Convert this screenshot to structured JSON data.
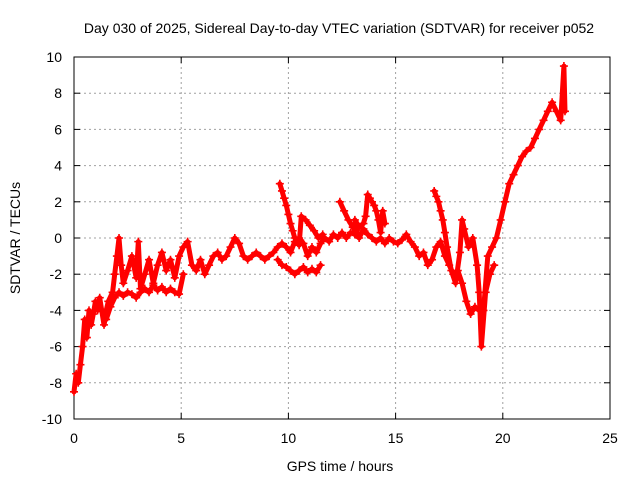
{
  "chart_data": {
    "type": "scatter",
    "title": "Day 030 of 2025, Sidereal Day-to-day VTEC variation (SDTVAR) for receiver p052",
    "xlabel": "GPS time / hours",
    "ylabel": "SDTVAR / TECUs",
    "xlim": [
      0,
      25
    ],
    "ylim": [
      -10,
      10
    ],
    "xticks": [
      0,
      5,
      10,
      15,
      20,
      25
    ],
    "yticks": [
      -10,
      -8,
      -6,
      -4,
      -2,
      0,
      2,
      4,
      6,
      8,
      10
    ],
    "grid": true,
    "legend": "none",
    "marker": "+",
    "series": [
      {
        "name": "main",
        "color": "#ff0000",
        "points": [
          [
            0.0,
            -8.5
          ],
          [
            0.1,
            -7.5
          ],
          [
            0.2,
            -8.0
          ],
          [
            0.3,
            -7.0
          ],
          [
            0.4,
            -6.0
          ],
          [
            0.5,
            -4.5
          ],
          [
            0.6,
            -5.5
          ],
          [
            0.7,
            -4.0
          ],
          [
            0.8,
            -4.8
          ],
          [
            0.9,
            -4.2
          ],
          [
            1.0,
            -3.5
          ],
          [
            1.1,
            -4.0
          ],
          [
            1.2,
            -3.3
          ],
          [
            1.4,
            -4.8
          ],
          [
            1.5,
            -4.0
          ],
          [
            1.6,
            -3.5
          ],
          [
            1.8,
            -3.0
          ],
          [
            1.9,
            -2.0
          ],
          [
            2.0,
            -1.0
          ],
          [
            2.1,
            0.0
          ],
          [
            2.2,
            -1.5
          ],
          [
            2.3,
            -2.5
          ],
          [
            2.5,
            -1.8
          ],
          [
            2.7,
            -1.0
          ],
          [
            2.9,
            -2.2
          ],
          [
            3.0,
            -0.2
          ],
          [
            3.1,
            -2.8
          ],
          [
            3.3,
            -2.0
          ],
          [
            3.5,
            -1.2
          ],
          [
            3.7,
            -2.5
          ],
          [
            3.9,
            -1.5
          ],
          [
            4.1,
            -0.8
          ],
          [
            4.3,
            -1.8
          ],
          [
            4.5,
            -1.2
          ],
          [
            4.7,
            -2.2
          ],
          [
            4.9,
            -1.0
          ],
          [
            5.1,
            -0.5
          ],
          [
            5.3,
            -0.2
          ],
          [
            5.5,
            -1.5
          ],
          [
            5.7,
            -1.8
          ],
          [
            5.9,
            -1.2
          ],
          [
            6.1,
            -2.0
          ],
          [
            6.3,
            -1.5
          ],
          [
            6.5,
            -1.0
          ],
          [
            6.7,
            -0.8
          ],
          [
            6.9,
            -1.2
          ],
          [
            7.1,
            -1.0
          ],
          [
            7.3,
            -0.5
          ],
          [
            7.5,
            0.0
          ],
          [
            7.7,
            -0.3
          ],
          [
            7.9,
            -1.0
          ],
          [
            8.1,
            -1.2
          ],
          [
            8.3,
            -1.0
          ],
          [
            8.5,
            -0.8
          ],
          [
            8.7,
            -1.0
          ],
          [
            8.9,
            -1.2
          ],
          [
            9.1,
            -1.0
          ],
          [
            9.3,
            -0.8
          ],
          [
            9.5,
            -0.5
          ],
          [
            9.7,
            -0.3
          ],
          [
            9.9,
            -0.5
          ],
          [
            10.1,
            -0.8
          ],
          [
            10.3,
            -0.2
          ],
          [
            10.5,
            0.0
          ],
          [
            10.7,
            -0.3
          ],
          [
            10.9,
            -1.0
          ],
          [
            11.1,
            -0.5
          ],
          [
            11.3,
            -0.8
          ],
          [
            11.5,
            -0.3
          ],
          [
            11.7,
            0.0
          ],
          [
            11.9,
            -0.2
          ],
          [
            12.1,
            0.2
          ],
          [
            12.3,
            0.0
          ],
          [
            12.5,
            0.3
          ],
          [
            12.7,
            0.0
          ],
          [
            12.9,
            0.3
          ],
          [
            13.1,
            0.2
          ],
          [
            13.3,
            0.0
          ],
          [
            13.5,
            0.5
          ],
          [
            13.7,
            0.2
          ],
          [
            13.9,
            0.0
          ],
          [
            14.1,
            -0.2
          ],
          [
            14.3,
            0.0
          ],
          [
            14.5,
            -0.3
          ],
          [
            14.7,
            0.0
          ],
          [
            14.9,
            -0.2
          ],
          [
            15.1,
            -0.3
          ],
          [
            15.3,
            -0.1
          ],
          [
            15.5,
            0.2
          ],
          [
            15.7,
            -0.2
          ],
          [
            15.9,
            -0.5
          ],
          [
            16.1,
            -1.0
          ],
          [
            16.3,
            -0.8
          ],
          [
            16.5,
            -1.5
          ],
          [
            16.7,
            -1.2
          ],
          [
            16.9,
            -0.5
          ],
          [
            17.1,
            -0.2
          ],
          [
            17.3,
            -1.0
          ],
          [
            17.5,
            -1.5
          ],
          [
            17.7,
            -2.0
          ],
          [
            17.9,
            -1.8
          ],
          [
            18.1,
            -2.5
          ],
          [
            18.3,
            -3.5
          ],
          [
            18.5,
            -4.2
          ],
          [
            18.7,
            -3.8
          ],
          [
            18.9,
            -4.0
          ],
          [
            19.1,
            -4.0
          ],
          [
            19.3,
            -1.0
          ],
          [
            19.5,
            -0.5
          ],
          [
            19.7,
            0.0
          ],
          [
            19.9,
            1.0
          ],
          [
            20.1,
            2.0
          ],
          [
            20.3,
            3.0
          ],
          [
            20.5,
            3.5
          ],
          [
            20.7,
            4.0
          ],
          [
            20.9,
            4.5
          ],
          [
            21.1,
            4.8
          ],
          [
            21.3,
            5.0
          ],
          [
            21.5,
            5.5
          ],
          [
            21.7,
            6.0
          ],
          [
            21.9,
            6.5
          ],
          [
            22.1,
            7.0
          ],
          [
            22.3,
            7.5
          ],
          [
            22.5,
            7.0
          ],
          [
            22.7,
            6.5
          ],
          [
            22.85,
            9.5
          ],
          [
            22.9,
            7.0
          ]
        ]
      },
      {
        "name": "early-low-band",
        "color": "#ff0000",
        "points": [
          [
            1.5,
            -4.5
          ],
          [
            1.7,
            -3.8
          ],
          [
            1.9,
            -3.3
          ],
          [
            2.1,
            -3.0
          ],
          [
            2.3,
            -3.2
          ],
          [
            2.5,
            -3.0
          ],
          [
            2.7,
            -3.1
          ],
          [
            2.9,
            -3.3
          ],
          [
            3.1,
            -3.0
          ],
          [
            3.3,
            -2.8
          ],
          [
            3.5,
            -3.0
          ],
          [
            3.7,
            -2.6
          ],
          [
            3.9,
            -2.9
          ],
          [
            4.1,
            -2.7
          ],
          [
            4.3,
            -3.0
          ],
          [
            4.5,
            -2.8
          ],
          [
            4.7,
            -3.0
          ],
          [
            4.9,
            -3.1
          ],
          [
            5.1,
            -2.0
          ]
        ]
      },
      {
        "name": "mid-low-band",
        "color": "#ff0000",
        "points": [
          [
            9.5,
            -1.2
          ],
          [
            9.7,
            -1.5
          ],
          [
            9.9,
            -1.6
          ],
          [
            10.1,
            -1.8
          ],
          [
            10.3,
            -2.0
          ],
          [
            10.5,
            -1.8
          ],
          [
            10.7,
            -1.6
          ],
          [
            10.9,
            -1.9
          ],
          [
            11.1,
            -1.7
          ],
          [
            11.3,
            -1.9
          ],
          [
            11.5,
            -1.5
          ]
        ]
      },
      {
        "name": "mid-upper-strand",
        "color": "#ff0000",
        "points": [
          [
            9.6,
            3.0
          ],
          [
            9.7,
            2.6
          ],
          [
            9.8,
            2.2
          ],
          [
            9.9,
            1.8
          ],
          [
            10.0,
            1.3
          ],
          [
            10.1,
            0.8
          ],
          [
            10.2,
            0.4
          ],
          [
            10.3,
            0.0
          ],
          [
            10.5,
            -0.4
          ],
          [
            10.6,
            1.2
          ],
          [
            10.8,
            1.0
          ],
          [
            11.0,
            0.7
          ],
          [
            11.2,
            0.4
          ],
          [
            11.4,
            0.0
          ],
          [
            11.6,
            0.2
          ]
        ]
      },
      {
        "name": "upper-spikes",
        "color": "#ff0000",
        "points": [
          [
            12.4,
            2.0
          ],
          [
            12.6,
            1.5
          ],
          [
            12.8,
            1.0
          ],
          [
            13.0,
            0.6
          ],
          [
            13.2,
            0.3
          ],
          [
            13.1,
            1.0
          ],
          [
            13.3,
            0.6
          ],
          [
            13.5,
            0.8
          ],
          [
            13.6,
            1.2
          ],
          [
            13.7,
            2.4
          ],
          [
            13.8,
            2.2
          ],
          [
            13.9,
            2.0
          ],
          [
            14.0,
            1.8
          ],
          [
            14.1,
            1.5
          ],
          [
            14.2,
            1.0
          ],
          [
            14.3,
            0.3
          ],
          [
            14.4,
            1.5
          ],
          [
            14.5,
            0.8
          ]
        ]
      },
      {
        "name": "late-spike",
        "color": "#ff0000",
        "points": [
          [
            16.8,
            2.6
          ],
          [
            16.9,
            2.3
          ],
          [
            17.0,
            2.0
          ],
          [
            17.1,
            1.5
          ],
          [
            17.2,
            1.0
          ],
          [
            17.3,
            0.3
          ],
          [
            17.4,
            -0.5
          ],
          [
            17.6,
            -1.8
          ],
          [
            17.8,
            -2.5
          ],
          [
            18.0,
            -0.8
          ],
          [
            18.1,
            1.0
          ],
          [
            18.2,
            0.5
          ],
          [
            18.4,
            -0.5
          ],
          [
            18.6,
            0.0
          ],
          [
            18.8,
            -1.5
          ],
          [
            18.9,
            -3.0
          ],
          [
            19.0,
            -6.0
          ],
          [
            19.2,
            -3.0
          ],
          [
            19.4,
            -2.0
          ],
          [
            19.6,
            -1.5
          ]
        ]
      }
    ]
  }
}
